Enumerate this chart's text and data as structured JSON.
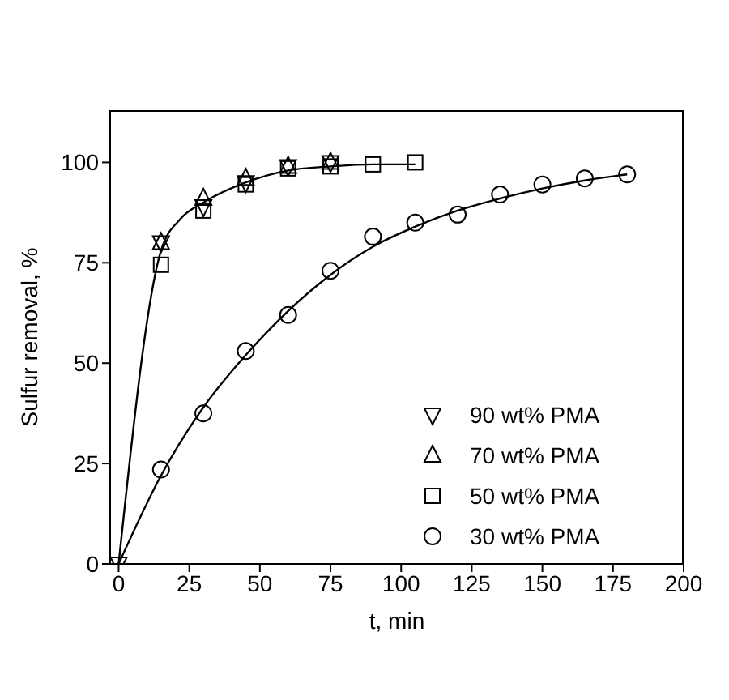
{
  "chart_data": {
    "type": "scatter",
    "xlabel": "t, min",
    "ylabel": "Sulfur removal, %",
    "xlim": [
      -3,
      200
    ],
    "xticks": [
      0,
      25,
      50,
      75,
      100,
      125,
      150,
      175,
      200
    ],
    "ylim": [
      0,
      113
    ],
    "yticks": [
      0,
      25,
      50,
      75,
      100
    ],
    "grid": false,
    "legend": "bottom right",
    "series": [
      {
        "name": "90 wt% PMA",
        "color": "#000000",
        "marker": "triangle-down",
        "x": [
          0,
          15,
          30,
          45,
          60,
          75
        ],
        "values": [
          0,
          80,
          89,
          95,
          99,
          100
        ]
      },
      {
        "name": "70 wt% PMA",
        "color": "#000000",
        "marker": "triangle",
        "x": [
          15,
          30,
          45,
          60,
          75
        ],
        "values": [
          80,
          91,
          96,
          99,
          100
        ]
      },
      {
        "name": "50 wt% PMA",
        "color": "#000000",
        "marker": "square",
        "x": [
          15,
          30,
          45,
          60,
          75,
          90,
          105
        ],
        "values": [
          74.5,
          88,
          94.5,
          98.5,
          99,
          99.5,
          100
        ]
      },
      {
        "name": "30 wt% PMA",
        "color": "#000000",
        "marker": "circle",
        "x": [
          15,
          30,
          45,
          60,
          75,
          90,
          105,
          120,
          135,
          150,
          165,
          180
        ],
        "values": [
          23.5,
          37.5,
          53,
          62,
          73,
          81.5,
          85,
          87,
          92,
          94.5,
          96,
          97
        ]
      },
      {
        "type": "line",
        "color": "#000000",
        "marker": "none",
        "x": [
          0,
          15,
          22,
          30,
          45,
          60,
          75,
          90,
          105
        ],
        "values": [
          0,
          78,
          86,
          90,
          95,
          98,
          99,
          99.5,
          99.5
        ]
      },
      {
        "type": "line",
        "color": "#000000",
        "marker": "none",
        "x": [
          0,
          15,
          30,
          45,
          60,
          75,
          90,
          105,
          120,
          135,
          150,
          165,
          180
        ],
        "values": [
          0,
          22,
          39,
          52,
          63,
          72,
          79,
          84,
          88,
          91,
          93.5,
          95.5,
          97
        ]
      }
    ]
  }
}
